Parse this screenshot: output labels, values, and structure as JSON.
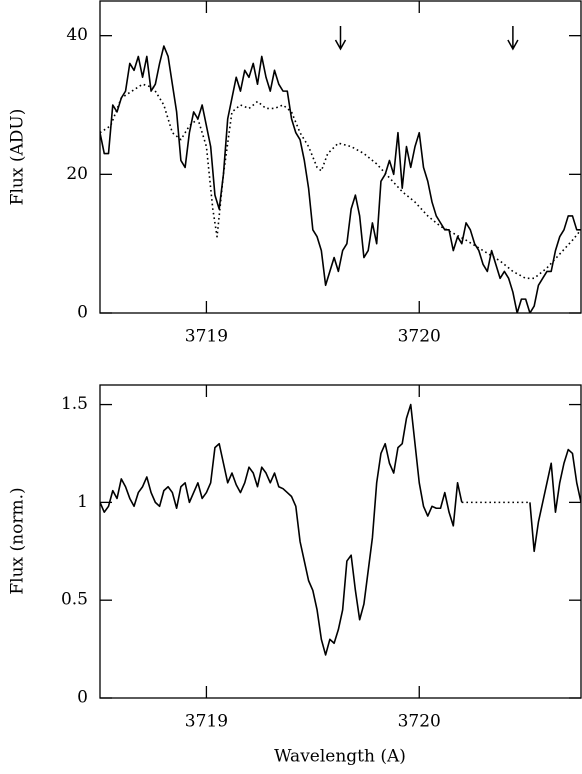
{
  "chart_data": [
    {
      "type": "line",
      "ylabel": "Flux (ADU)",
      "xlim": [
        3718.5,
        3720.76
      ],
      "ylim": [
        0,
        45
      ],
      "xticks": [
        3719,
        3720
      ],
      "yticks": [
        0,
        20,
        40
      ],
      "arrows": [
        3719.63,
        3720.44
      ],
      "series": [
        {
          "style": "solid",
          "color": "#000000",
          "x": [
            3718.5,
            3718.52,
            3718.54,
            3718.56,
            3718.58,
            3718.6,
            3718.62,
            3718.64,
            3718.66,
            3718.68,
            3718.7,
            3718.72,
            3718.74,
            3718.76,
            3718.78,
            3718.8,
            3718.82,
            3718.84,
            3718.86,
            3718.88,
            3718.9,
            3718.92,
            3718.94,
            3718.96,
            3718.98,
            3719.0,
            3719.02,
            3719.04,
            3719.06,
            3719.08,
            3719.1,
            3719.12,
            3719.14,
            3719.16,
            3719.18,
            3719.2,
            3719.22,
            3719.24,
            3719.26,
            3719.28,
            3719.3,
            3719.32,
            3719.34,
            3719.36,
            3719.38,
            3719.4,
            3719.42,
            3719.44,
            3719.46,
            3719.48,
            3719.5,
            3719.52,
            3719.54,
            3719.56,
            3719.58,
            3719.6,
            3719.62,
            3719.64,
            3719.66,
            3719.68,
            3719.7,
            3719.72,
            3719.74,
            3719.76,
            3719.78,
            3719.8,
            3719.82,
            3719.84,
            3719.86,
            3719.88,
            3719.9,
            3719.92,
            3719.94,
            3719.96,
            3719.98,
            3720.0,
            3720.02,
            3720.04,
            3720.06,
            3720.08,
            3720.1,
            3720.12,
            3720.14,
            3720.16,
            3720.18,
            3720.2,
            3720.22,
            3720.24,
            3720.26,
            3720.28,
            3720.3,
            3720.32,
            3720.34,
            3720.36,
            3720.38,
            3720.4,
            3720.42,
            3720.44,
            3720.46,
            3720.48,
            3720.5,
            3720.52,
            3720.54,
            3720.56,
            3720.58,
            3720.6,
            3720.62,
            3720.64,
            3720.66,
            3720.68,
            3720.7,
            3720.72,
            3720.74,
            3720.76
          ],
          "values": [
            26,
            23,
            23,
            30,
            29,
            31,
            32,
            36,
            35,
            37,
            34,
            37,
            32,
            33,
            36,
            38.5,
            37,
            33,
            29,
            22,
            21,
            26,
            29,
            28,
            30,
            27,
            24,
            17,
            15,
            20,
            28,
            31,
            34,
            32,
            35,
            34,
            36,
            33,
            37,
            34,
            32,
            35,
            33,
            32,
            32,
            28,
            26,
            25,
            22,
            18,
            12,
            11,
            9,
            4,
            6,
            8,
            6,
            9,
            10,
            15,
            17,
            14,
            8,
            9,
            13,
            10,
            19,
            20,
            22,
            20,
            26,
            18,
            24,
            21,
            24,
            26,
            21,
            19,
            16,
            14,
            13,
            12,
            12,
            9,
            11,
            10,
            13,
            12,
            10,
            9,
            7,
            6,
            9,
            7,
            5,
            6,
            5,
            3,
            0,
            2,
            2,
            0,
            1,
            4,
            5,
            6,
            6,
            9,
            11,
            12,
            14,
            14,
            12,
            12
          ]
        },
        {
          "style": "dotted",
          "color": "#000000",
          "x": [
            3718.5,
            3718.55,
            3718.6,
            3718.65,
            3718.7,
            3718.75,
            3718.8,
            3718.84,
            3718.88,
            3718.92,
            3718.96,
            3719.0,
            3719.03,
            3719.05,
            3719.08,
            3719.12,
            3719.16,
            3719.2,
            3719.24,
            3719.28,
            3719.32,
            3719.36,
            3719.4,
            3719.44,
            3719.48,
            3719.52,
            3719.54,
            3719.57,
            3719.62,
            3719.68,
            3719.74,
            3719.8,
            3719.86,
            3719.92,
            3719.98,
            3720.04,
            3720.1,
            3720.16,
            3720.22,
            3720.3,
            3720.38,
            3720.44,
            3720.5,
            3720.54,
            3720.6,
            3720.66,
            3720.72,
            3720.76
          ],
          "values": [
            26,
            27,
            31,
            32,
            33,
            32.5,
            30,
            26,
            25,
            27,
            28,
            24,
            15,
            11,
            20,
            29,
            30,
            29.5,
            30.5,
            29.5,
            29.5,
            30,
            29,
            26,
            24,
            21,
            20.5,
            23,
            24.5,
            24,
            23,
            21.5,
            19.5,
            17.5,
            16,
            14,
            12.5,
            11.5,
            10.5,
            9,
            7.5,
            6,
            5,
            5,
            6.5,
            8.5,
            10.5,
            12
          ]
        }
      ]
    },
    {
      "type": "line",
      "xlabel": "Wavelength (A)",
      "ylabel": "Flux (norm.)",
      "xlim": [
        3718.5,
        3720.76
      ],
      "ylim": [
        0,
        1.6
      ],
      "xticks": [
        3719,
        3720
      ],
      "yticks": [
        0,
        0.5,
        1,
        1.5
      ],
      "series": [
        {
          "style": "solid",
          "color": "#000000",
          "x": [
            3718.5,
            3718.52,
            3718.54,
            3718.56,
            3718.58,
            3718.6,
            3718.62,
            3718.64,
            3718.66,
            3718.68,
            3718.7,
            3718.72,
            3718.74,
            3718.76,
            3718.78,
            3718.8,
            3718.82,
            3718.84,
            3718.86,
            3718.88,
            3718.9,
            3718.92,
            3718.94,
            3718.96,
            3718.98,
            3719.0,
            3719.02,
            3719.04,
            3719.06,
            3719.08,
            3719.1,
            3719.12,
            3719.14,
            3719.16,
            3719.18,
            3719.2,
            3719.22,
            3719.24,
            3719.26,
            3719.28,
            3719.3,
            3719.32,
            3719.34,
            3719.36,
            3719.38,
            3719.4,
            3719.42,
            3719.44,
            3719.46,
            3719.48,
            3719.5,
            3719.52,
            3719.54,
            3719.56,
            3719.58,
            3719.6,
            3719.62,
            3719.64,
            3719.66,
            3719.68,
            3719.7,
            3719.72,
            3719.74,
            3719.76,
            3719.78,
            3719.8,
            3719.82,
            3719.84,
            3719.86,
            3719.88,
            3719.9,
            3719.92,
            3719.94,
            3719.96,
            3719.98,
            3720.0,
            3720.02,
            3720.04,
            3720.06,
            3720.08,
            3720.1,
            3720.12,
            3720.14,
            3720.16,
            3720.18,
            3720.2,
            3720.36,
            3720.52,
            3720.54,
            3720.56,
            3720.58,
            3720.6,
            3720.62,
            3720.64,
            3720.66,
            3720.68,
            3720.7,
            3720.72,
            3720.74,
            3720.76
          ],
          "values": [
            1.0,
            0.95,
            0.98,
            1.06,
            1.02,
            1.12,
            1.08,
            1.02,
            0.98,
            1.05,
            1.08,
            1.13,
            1.05,
            1.0,
            0.98,
            1.06,
            1.08,
            1.05,
            0.97,
            1.08,
            1.1,
            1.0,
            1.05,
            1.1,
            1.02,
            1.05,
            1.1,
            1.28,
            1.3,
            1.2,
            1.1,
            1.15,
            1.09,
            1.05,
            1.1,
            1.18,
            1.15,
            1.08,
            1.18,
            1.15,
            1.1,
            1.15,
            1.08,
            1.07,
            1.05,
            1.03,
            0.98,
            0.8,
            0.7,
            0.6,
            0.55,
            0.45,
            0.3,
            0.22,
            0.3,
            0.28,
            0.35,
            0.45,
            0.7,
            0.73,
            0.55,
            0.4,
            0.48,
            0.65,
            0.82,
            1.1,
            1.25,
            1.3,
            1.2,
            1.15,
            1.28,
            1.3,
            1.43,
            1.5,
            1.3,
            1.1,
            0.98,
            0.93,
            0.98,
            0.97,
            0.97,
            1.05,
            0.95,
            0.88,
            1.1,
            1.0,
            null,
            1.0,
            0.75,
            0.9,
            1.0,
            1.1,
            1.2,
            0.95,
            1.1,
            1.2,
            1.27,
            1.25,
            1.1,
            1.0
          ]
        },
        {
          "style": "dotted",
          "color": "#000000",
          "x": [
            3720.2,
            3720.52
          ],
          "values": [
            1,
            1
          ]
        }
      ]
    }
  ]
}
